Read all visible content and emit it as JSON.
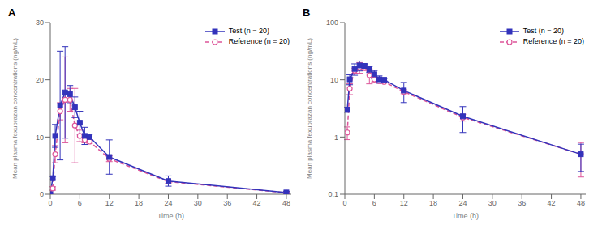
{
  "chart_data": [
    {
      "type": "line",
      "title": "A",
      "xlabel": "Time (h)",
      "ylabel": "Mean plasma fexuprazan concentrations (ng/mL)",
      "xlim": [
        0,
        49
      ],
      "xticks": [
        0,
        6,
        12,
        18,
        24,
        30,
        36,
        42,
        48
      ],
      "ylim": [
        0,
        30
      ],
      "yticks": [
        0,
        10,
        20,
        30
      ],
      "grid": false,
      "legend": "upper right",
      "series": [
        {
          "name": "Test (n = 20)",
          "color": "#3333bb",
          "marker": "square",
          "line_style": "solid",
          "x": [
            0,
            0.5,
            1,
            2,
            3,
            4,
            5,
            6,
            7,
            8,
            12,
            24,
            48
          ],
          "values": [
            0,
            2.8,
            10.2,
            15.5,
            17.8,
            17.5,
            15.2,
            12.5,
            10.2,
            10.0,
            6.5,
            2.3,
            0.3
          ],
          "yerr": [
            0,
            0.3,
            2.0,
            9.5,
            8.0,
            1.5,
            1.8,
            2.0,
            1.5,
            0.5,
            3.0,
            0.9,
            0.2
          ]
        },
        {
          "name": "Reference (n = 20)",
          "color": "#dd5599",
          "marker": "circle",
          "line_style": "dashed",
          "x": [
            0,
            0.5,
            1,
            2,
            3,
            4,
            5,
            6,
            7,
            8,
            12,
            24,
            48
          ],
          "values": [
            0,
            1.0,
            7.0,
            14.5,
            16.5,
            16.5,
            12.0,
            10.2,
            9.5,
            9.2,
            6.2,
            2.2,
            0.25
          ],
          "yerr": [
            0,
            0.3,
            1.5,
            1.5,
            7.5,
            2.0,
            6.5,
            1.0,
            0.5,
            0.3,
            0.5,
            0.3,
            0.1
          ]
        }
      ]
    },
    {
      "type": "line",
      "title": "B",
      "xlabel": "Time (h)",
      "ylabel": "Mean plasma fexuprazan concentrations (ng/mL)",
      "xlim": [
        0,
        49
      ],
      "xticks": [
        0,
        6,
        12,
        18,
        24,
        30,
        36,
        42,
        48
      ],
      "ylim": [
        0.1,
        100
      ],
      "yticks": [
        0.1,
        1,
        10,
        100
      ],
      "log": "y",
      "grid": false,
      "legend": "upper right",
      "series": [
        {
          "name": "Test (n = 20)",
          "color": "#3333bb",
          "marker": "square",
          "line_style": "solid",
          "x": [
            0.5,
            1,
            2,
            3,
            4,
            5,
            6,
            7,
            8,
            12,
            24,
            48
          ],
          "values": [
            3.0,
            10.2,
            15.5,
            17.8,
            17.5,
            15.2,
            12.5,
            10.2,
            10.0,
            6.5,
            2.3,
            0.5
          ],
          "yerr": [
            0.3,
            2.0,
            3.5,
            3.5,
            1.5,
            1.8,
            2.0,
            1.5,
            0.5,
            2.5,
            1.1,
            0.25
          ]
        },
        {
          "name": "Reference (n = 20)",
          "color": "#dd5599",
          "marker": "circle",
          "line_style": "dashed",
          "x": [
            0.5,
            1,
            2,
            3,
            4,
            5,
            6,
            7,
            8,
            12,
            24,
            48
          ],
          "values": [
            1.2,
            7.0,
            14.5,
            16.5,
            16.5,
            12.0,
            10.2,
            9.5,
            9.2,
            6.2,
            2.2,
            0.5
          ],
          "yerr": [
            0.3,
            1.5,
            1.5,
            3.5,
            2.0,
            3.5,
            1.0,
            0.5,
            0.3,
            0.5,
            0.3,
            0.3
          ]
        }
      ]
    }
  ]
}
